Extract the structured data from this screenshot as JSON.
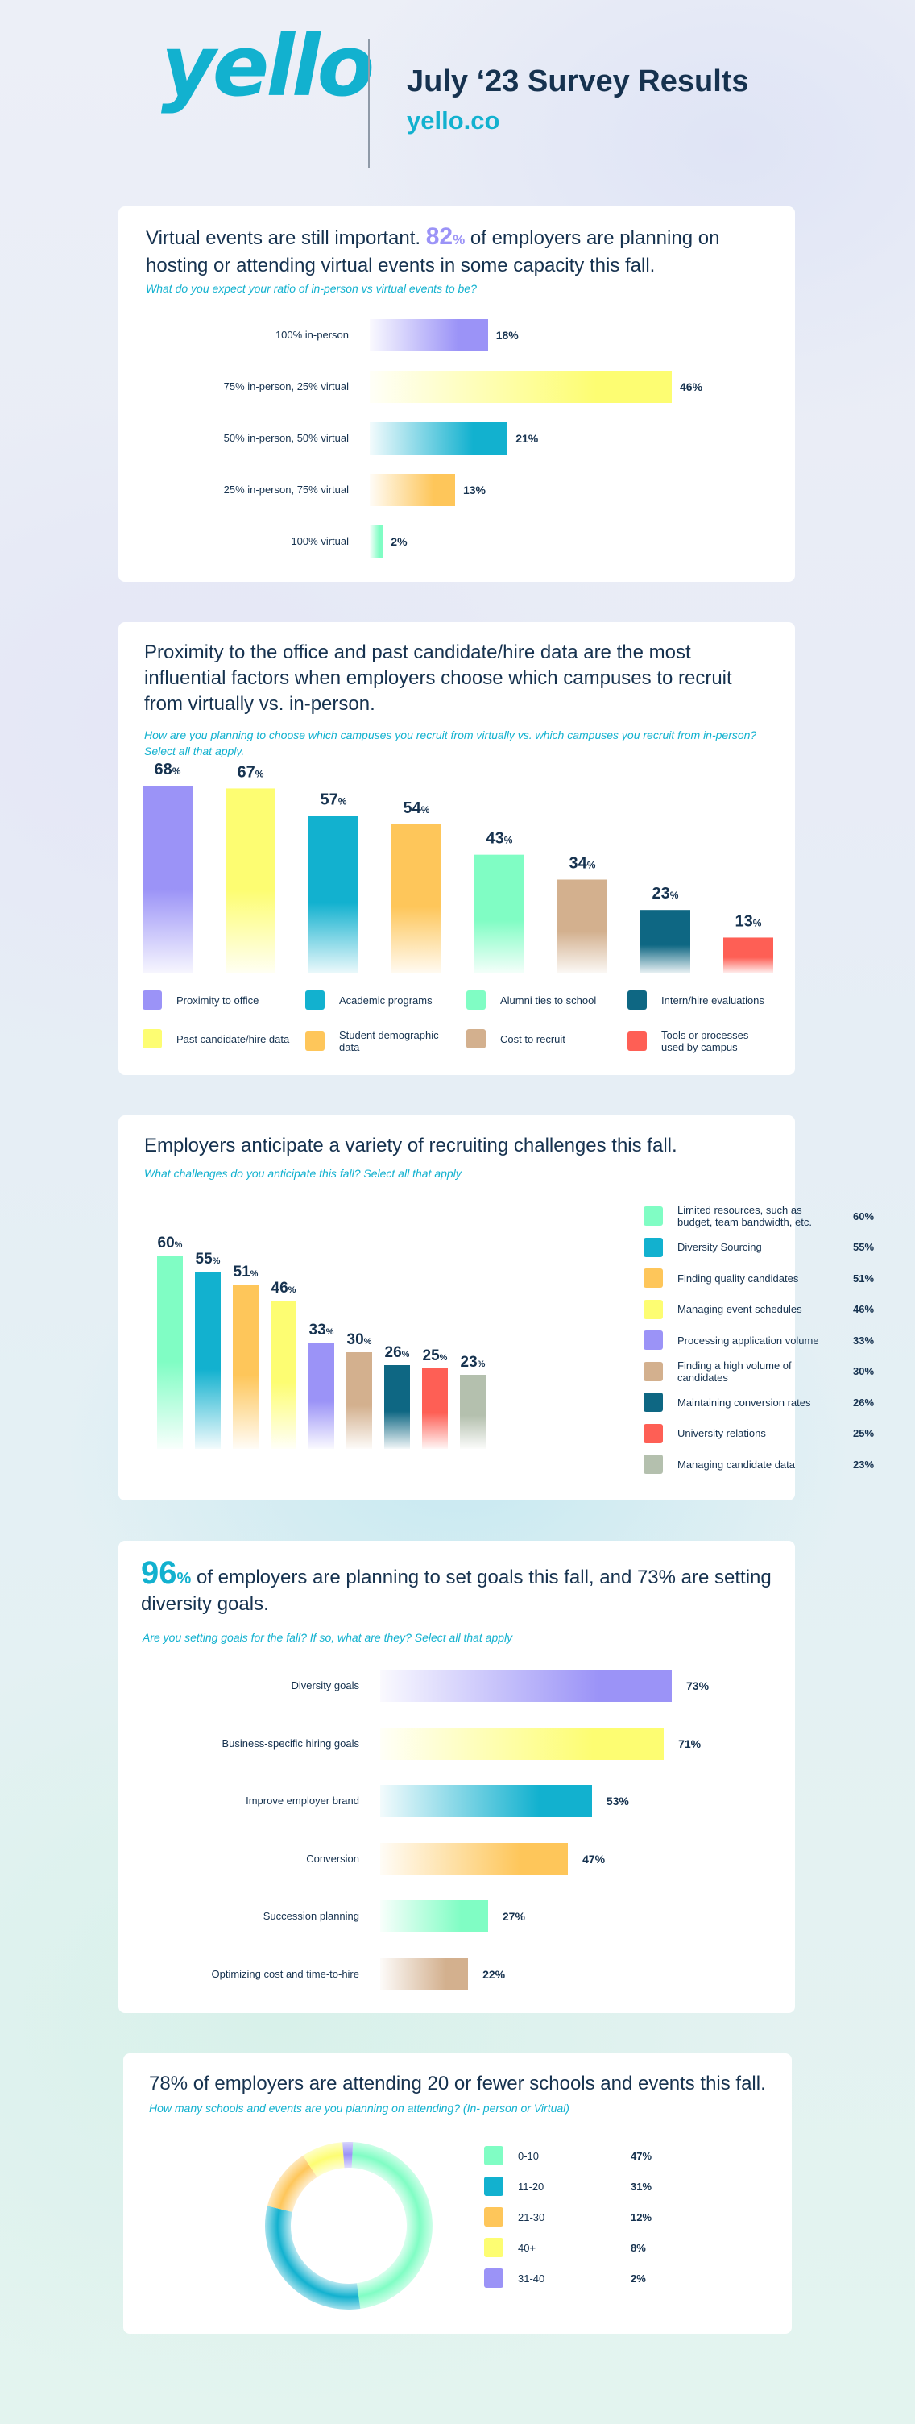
{
  "header": {
    "logo": "yello",
    "title": "July ‘23 Survey Results",
    "site": "yello.co"
  },
  "colors": {
    "purple": "#9b93f7",
    "yellow": "#fdfd72",
    "cyan": "#12b1cf",
    "orange": "#fec65a",
    "mint": "#80fdc4",
    "tan": "#d3b08e",
    "teal": "#0e6783",
    "red": "#fe5f55",
    "sage": "#b4c0ae",
    "navy": "#16324f"
  },
  "s1": {
    "title_pre": "Virtual events are still important.",
    "title_pct": "82",
    "title_post": "of employers are planning on hosting or attending virtual events in some capacity this fall.",
    "subtitle": "What do you expect your ratio of in-person vs virtual events to be?"
  },
  "s2": {
    "title": "Proximity to the office and past candidate/hire data are the most influential factors when employers choose which campuses to recruit from virtually vs. in-person.",
    "subtitle": "How are you planning to choose which campuses you recruit from virtually vs. which campuses you recruit from in-person? Select all that apply."
  },
  "s3": {
    "title": "Employers anticipate a variety of recruiting challenges this fall.",
    "subtitle": "What challenges do you anticipate this fall? Select all that apply"
  },
  "s4": {
    "title_pct": "96",
    "title_post": "of employers are planning to set goals this fall, and 73% are setting diversity goals.",
    "subtitle": "Are you setting goals for the fall? If so, what are they? Select all that apply"
  },
  "s5": {
    "title": "78% of employers are attending 20 or fewer schools and events this fall.",
    "subtitle": "How many schools and events are you planning on attending? (In- person or Virtual)"
  },
  "chart_data": [
    {
      "type": "bar",
      "orientation": "horizontal",
      "categories": [
        "100% in-person",
        "75% in-person, 25% virtual",
        "50% in-person, 50% virtual",
        "25% in-person, 75% virtual",
        "100% virtual"
      ],
      "values": [
        18,
        46,
        21,
        13,
        2
      ],
      "value_labels": [
        "18%",
        "46%",
        "21%",
        "13%",
        "2%"
      ],
      "colors": [
        "#9b93f7",
        "#fdfd72",
        "#12b1cf",
        "#fec65a",
        "#80fdc4"
      ],
      "ylim": [
        0,
        46
      ]
    },
    {
      "type": "bar",
      "orientation": "vertical",
      "categories": [
        "Proximity to office",
        "Past candidate/hire data",
        "Academic programs",
        "Student demographic data",
        "Alumni ties to school",
        "Cost to recruit",
        "Intern/hire evaluations",
        "Tools or processes used by campus"
      ],
      "values": [
        68,
        67,
        57,
        54,
        43,
        34,
        23,
        13
      ],
      "colors": [
        "#9b93f7",
        "#fdfd72",
        "#12b1cf",
        "#fec65a",
        "#80fdc4",
        "#d3b08e",
        "#0e6783",
        "#fe5f55"
      ],
      "legend": [
        {
          "label": "Proximity to office",
          "color": "#9b93f7"
        },
        {
          "label": "Academic programs",
          "color": "#12b1cf"
        },
        {
          "label": "Alumni ties to school",
          "color": "#80fdc4"
        },
        {
          "label": "Intern/hire evaluations",
          "color": "#0e6783"
        },
        {
          "label": "Past candidate/hire data",
          "color": "#fdfd72"
        },
        {
          "label": "Student demographic data",
          "color": "#fec65a"
        },
        {
          "label": "Cost to recruit",
          "color": "#d3b08e"
        },
        {
          "label": "Tools or processes used by campus",
          "color": "#fe5f55"
        }
      ],
      "unit": "%",
      "ylim": [
        0,
        68
      ]
    },
    {
      "type": "bar",
      "orientation": "vertical",
      "categories": [
        "Limited resources, such as budget, team bandwidth, etc.",
        "Diversity Sourcing",
        "Finding quality candidates",
        "Managing event schedules",
        "Processing application volume",
        "Finding a high volume of candidates",
        "Maintaining conversion rates",
        "University relations",
        "Managing candidate data"
      ],
      "values": [
        60,
        55,
        51,
        46,
        33,
        30,
        26,
        25,
        23
      ],
      "value_labels": [
        "60%",
        "55%",
        "51%",
        "46%",
        "33%",
        "30%",
        "26%",
        "25%",
        "23%"
      ],
      "colors": [
        "#80fdc4",
        "#12b1cf",
        "#fec65a",
        "#fdfd72",
        "#9b93f7",
        "#d3b08e",
        "#0e6783",
        "#fe5f55",
        "#b4c0ae"
      ],
      "unit": "%",
      "ylim": [
        0,
        60
      ]
    },
    {
      "type": "bar",
      "orientation": "horizontal",
      "categories": [
        "Diversity goals",
        "Business-specific hiring goals",
        "Improve employer brand",
        "Conversion",
        "Succession planning",
        "Optimizing cost and time-to-hire"
      ],
      "values": [
        73,
        71,
        53,
        47,
        27,
        22
      ],
      "value_labels": [
        "73%",
        "71%",
        "53%",
        "47%",
        "27%",
        "22%"
      ],
      "colors": [
        "#9b93f7",
        "#fdfd72",
        "#12b1cf",
        "#fec65a",
        "#80fdc4",
        "#d3b08e"
      ],
      "ylim": [
        0,
        73
      ]
    },
    {
      "type": "pie",
      "donut": true,
      "categories": [
        "0-10",
        "11-20",
        "21-30",
        "40+",
        "31-40"
      ],
      "values": [
        47,
        31,
        12,
        8,
        2
      ],
      "value_labels": [
        "47%",
        "31%",
        "12%",
        "8%",
        "2%"
      ],
      "colors": [
        "#80fdc4",
        "#12b1cf",
        "#fec65a",
        "#fdfd72",
        "#9b93f7"
      ]
    }
  ]
}
